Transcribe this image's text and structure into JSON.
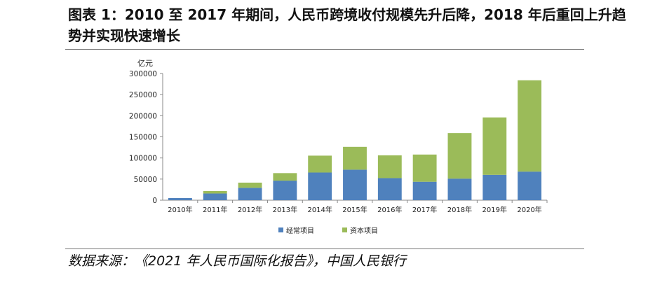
{
  "figure": {
    "title": "图表 1：2010 至 2017 年期间，人民币跨境收付规模先升后降，2018 年后重回上升趋势并实现快速增长",
    "source": "数据来源：《2021 年人民币国际化报告》，中国人民银行"
  },
  "chart_data": {
    "type": "bar",
    "stacked": true,
    "unit_label": "亿元",
    "categories": [
      "2010年",
      "2011年",
      "2012年",
      "2013年",
      "2014年",
      "2015年",
      "2016年",
      "2017年",
      "2018年",
      "2019年",
      "2020年"
    ],
    "series": [
      {
        "name": "经常项目",
        "color": "#4f81bd",
        "values": [
          5000,
          15800,
          29400,
          46300,
          65500,
          72300,
          52300,
          43600,
          51100,
          60000,
          67700
        ]
      },
      {
        "name": "资本项目",
        "color": "#9bbb59",
        "values": [
          0,
          5800,
          12200,
          17800,
          40000,
          54000,
          54000,
          64500,
          107800,
          136000,
          216300
        ]
      }
    ],
    "ylim": [
      0,
      300000
    ],
    "yticks": [
      0,
      50000,
      100000,
      150000,
      200000,
      250000,
      300000
    ],
    "legend_position": "bottom",
    "grid": false
  }
}
